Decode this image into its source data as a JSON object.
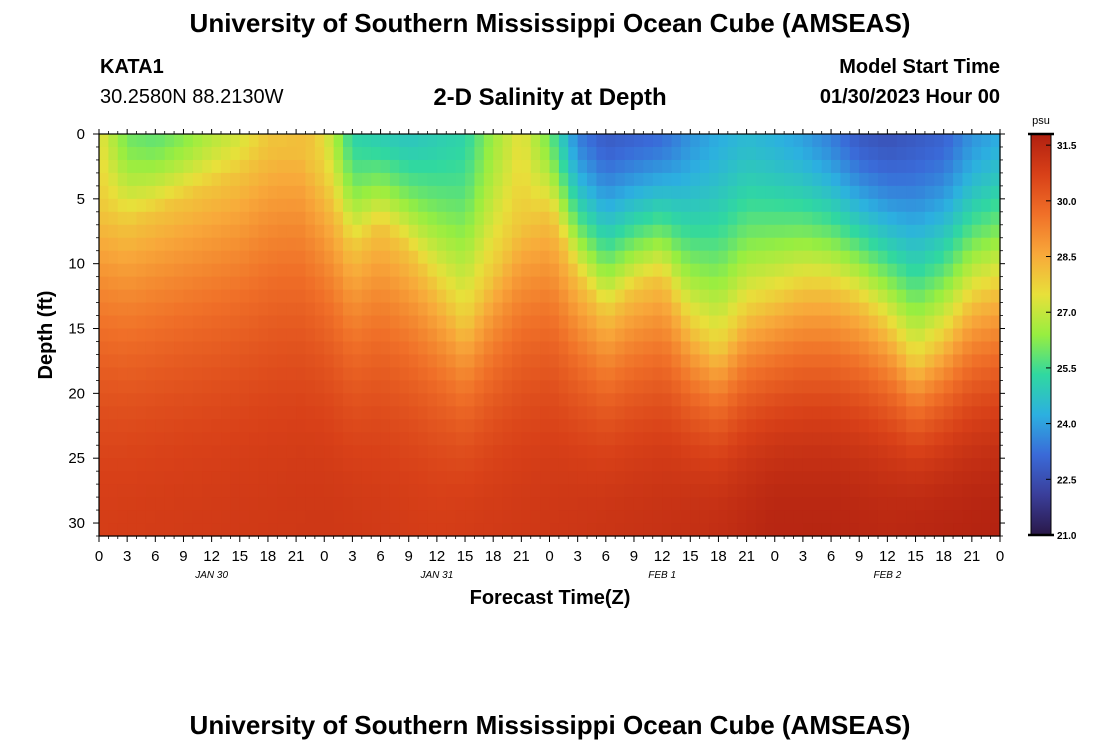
{
  "header": {
    "title": "University of Southern Mississippi Ocean Cube (AMSEAS)",
    "station": "KATA1",
    "coords": "30.2580N  88.2130W",
    "subtitle": "2-D Salinity at Depth",
    "model_start_label": "Model Start Time",
    "model_start_value": "01/30/2023 Hour 00"
  },
  "footer": {
    "title_repeat": "University of Southern Mississippi Ocean Cube (AMSEAS)"
  },
  "chart_data": {
    "type": "heatmap",
    "title": "2-D Salinity at Depth",
    "xlabel": "Forecast Time(Z)",
    "ylabel": "Depth (ft)",
    "x_tick_labels": [
      "0",
      "3",
      "6",
      "9",
      "12",
      "15",
      "18",
      "21",
      "0",
      "3",
      "6",
      "9",
      "12",
      "15",
      "18",
      "21",
      "0",
      "3",
      "6",
      "9",
      "12",
      "15",
      "18",
      "21",
      "0",
      "3",
      "6",
      "9",
      "12",
      "15",
      "18",
      "21",
      "0"
    ],
    "x_range_hours": [
      0,
      96
    ],
    "date_labels": [
      {
        "label": "JAN 30",
        "hour": 12
      },
      {
        "label": "JAN 31",
        "hour": 36
      },
      {
        "label": "FEB 1",
        "hour": 60
      },
      {
        "label": "FEB 2",
        "hour": 84
      }
    ],
    "y_tick_labels": [
      "0",
      "5",
      "10",
      "15",
      "20",
      "25",
      "30"
    ],
    "y_ticks": [
      0,
      5,
      10,
      15,
      20,
      25,
      30
    ],
    "ylim": [
      0,
      31
    ],
    "colorbar": {
      "unit": "psu",
      "min": 21.0,
      "max": 31.8,
      "tick_labels": [
        "31.5",
        "30.0",
        "28.5",
        "27.0",
        "25.5",
        "24.0",
        "22.5",
        "21.0"
      ],
      "ticks": [
        31.5,
        30.0,
        28.5,
        27.0,
        25.5,
        24.0,
        22.5,
        21.0
      ],
      "colors": [
        "#2a1848",
        "#3a3e9a",
        "#3a6ad8",
        "#2cb0e0",
        "#30d8a0",
        "#98ee40",
        "#e8e03a",
        "#f8a83a",
        "#f07028",
        "#d84018",
        "#b02010"
      ]
    },
    "isohaline_28_depth_ft": [
      {
        "hour": 0,
        "depth": 6
      },
      {
        "hour": 3,
        "depth": 7
      },
      {
        "hour": 6,
        "depth": 6
      },
      {
        "hour": 9,
        "depth": 5
      },
      {
        "hour": 12,
        "depth": 4
      },
      {
        "hour": 15,
        "depth": 3
      },
      {
        "hour": 18,
        "depth": 1
      },
      {
        "hour": 21,
        "depth": 0
      },
      {
        "hour": 24,
        "depth": 4
      },
      {
        "hour": 27,
        "depth": 9
      },
      {
        "hour": 30,
        "depth": 7
      },
      {
        "hour": 33,
        "depth": 9
      },
      {
        "hour": 36,
        "depth": 12
      },
      {
        "hour": 39,
        "depth": 15
      },
      {
        "hour": 42,
        "depth": 11
      },
      {
        "hour": 45,
        "depth": 7
      },
      {
        "hour": 48,
        "depth": 6
      },
      {
        "hour": 51,
        "depth": 11
      },
      {
        "hour": 54,
        "depth": 14
      },
      {
        "hour": 57,
        "depth": 12
      },
      {
        "hour": 60,
        "depth": 11
      },
      {
        "hour": 63,
        "depth": 15
      },
      {
        "hour": 66,
        "depth": 17
      },
      {
        "hour": 69,
        "depth": 14
      },
      {
        "hour": 72,
        "depth": 13
      },
      {
        "hour": 75,
        "depth": 12
      },
      {
        "hour": 78,
        "depth": 12
      },
      {
        "hour": 81,
        "depth": 13
      },
      {
        "hour": 84,
        "depth": 15
      },
      {
        "hour": 87,
        "depth": 18
      },
      {
        "hour": 90,
        "depth": 16
      },
      {
        "hour": 93,
        "depth": 13
      },
      {
        "hour": 96,
        "depth": 12
      }
    ],
    "surface_salinity_psu": [
      {
        "hour": 0,
        "value": 27.5
      },
      {
        "hour": 3,
        "value": 26.0
      },
      {
        "hour": 6,
        "value": 25.8
      },
      {
        "hour": 9,
        "value": 26.2
      },
      {
        "hour": 12,
        "value": 26.8
      },
      {
        "hour": 15,
        "value": 27.2
      },
      {
        "hour": 18,
        "value": 28.0
      },
      {
        "hour": 21,
        "value": 28.6
      },
      {
        "hour": 24,
        "value": 27.5
      },
      {
        "hour": 27,
        "value": 25.2
      },
      {
        "hour": 30,
        "value": 25.0
      },
      {
        "hour": 33,
        "value": 24.8
      },
      {
        "hour": 36,
        "value": 25.0
      },
      {
        "hour": 39,
        "value": 25.2
      },
      {
        "hour": 42,
        "value": 26.5
      },
      {
        "hour": 45,
        "value": 27.5
      },
      {
        "hour": 48,
        "value": 26.0
      },
      {
        "hour": 51,
        "value": 23.5
      },
      {
        "hour": 54,
        "value": 22.8
      },
      {
        "hour": 57,
        "value": 23.0
      },
      {
        "hour": 60,
        "value": 23.2
      },
      {
        "hour": 63,
        "value": 23.8
      },
      {
        "hour": 66,
        "value": 24.2
      },
      {
        "hour": 69,
        "value": 24.5
      },
      {
        "hour": 72,
        "value": 24.3
      },
      {
        "hour": 75,
        "value": 24.0
      },
      {
        "hour": 78,
        "value": 23.5
      },
      {
        "hour": 81,
        "value": 22.8
      },
      {
        "hour": 84,
        "value": 22.6
      },
      {
        "hour": 87,
        "value": 22.8
      },
      {
        "hour": 90,
        "value": 23.0
      },
      {
        "hour": 93,
        "value": 23.8
      },
      {
        "hour": 96,
        "value": 24.2
      }
    ],
    "bottom_salinity_psu": [
      {
        "hour": 0,
        "value": 30.8
      },
      {
        "hour": 12,
        "value": 30.9
      },
      {
        "hour": 24,
        "value": 31.0
      },
      {
        "hour": 36,
        "value": 30.8
      },
      {
        "hour": 48,
        "value": 31.0
      },
      {
        "hour": 60,
        "value": 31.2
      },
      {
        "hour": 66,
        "value": 31.3
      },
      {
        "hour": 72,
        "value": 31.6
      },
      {
        "hour": 78,
        "value": 31.6
      },
      {
        "hour": 84,
        "value": 31.5
      },
      {
        "hour": 90,
        "value": 31.6
      },
      {
        "hour": 96,
        "value": 31.7
      }
    ]
  }
}
